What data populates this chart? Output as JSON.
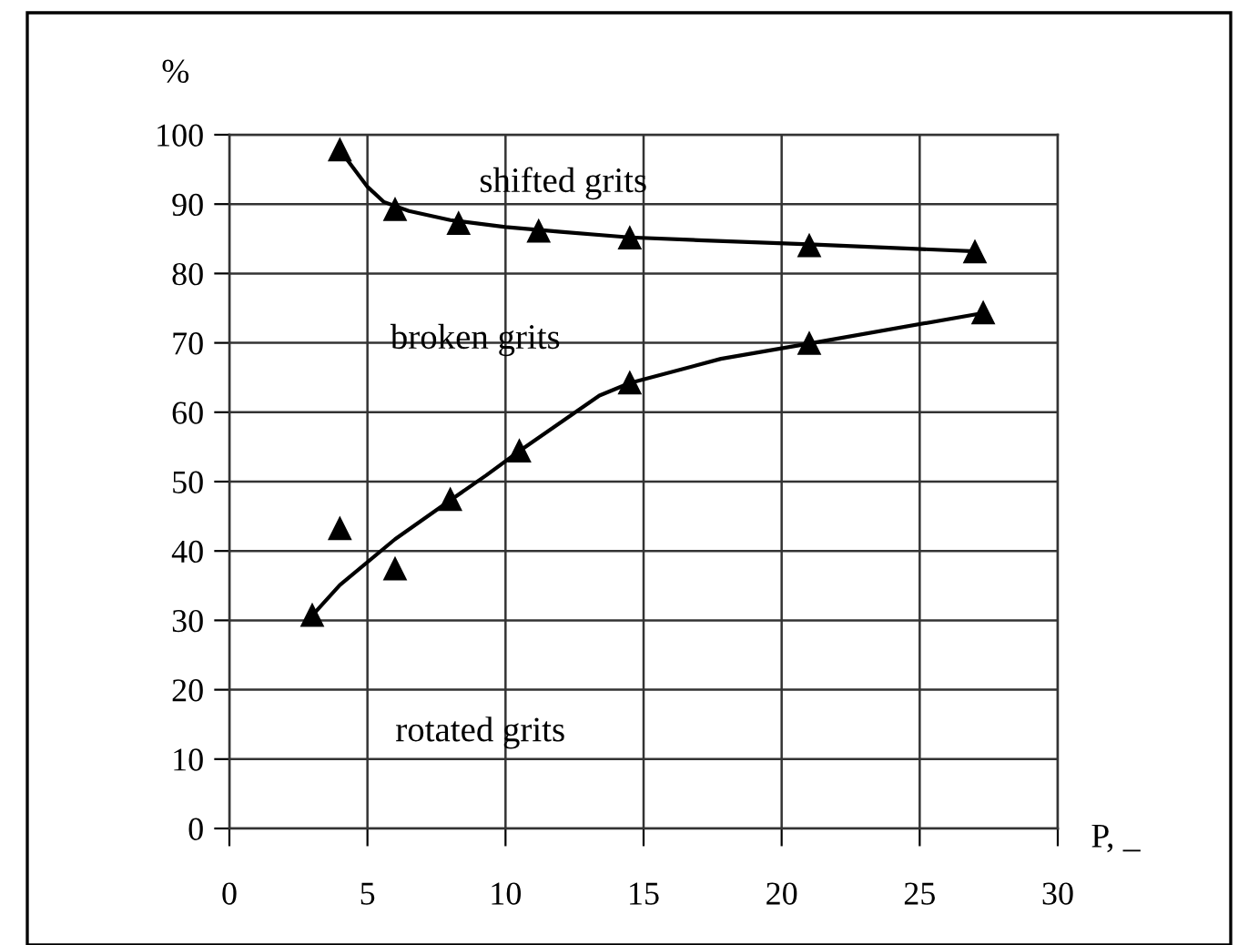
{
  "chart_data": {
    "type": "scatter",
    "xlabel": "P, _",
    "ylabel": "%",
    "xlim": [
      0,
      30
    ],
    "ylim": [
      0,
      100
    ],
    "xticks": [
      0,
      5,
      10,
      15,
      20,
      25,
      30
    ],
    "yticks": [
      0,
      10,
      20,
      30,
      40,
      50,
      60,
      70,
      80,
      90,
      100
    ],
    "grid": true,
    "marker": "triangle",
    "series": [
      {
        "color": "#000000",
        "x": [
          4.0,
          6.0,
          8.3,
          11.2,
          14.5,
          21.0,
          27.0
        ],
        "values": [
          97.8,
          89.2,
          87.2,
          86.1,
          85.1,
          84.0,
          83.1
        ]
      },
      {
        "type": "line",
        "marker": "none",
        "line_style": "solid",
        "color": "#000000",
        "x": [
          4.0,
          5.0,
          5.6,
          6.5,
          8.0,
          10.0,
          12.0,
          14.5,
          17.0,
          21.0,
          27.0
        ],
        "values": [
          97.8,
          92.5,
          90.3,
          89.0,
          87.7,
          86.7,
          86.0,
          85.2,
          84.8,
          84.2,
          83.2
        ]
      },
      {
        "color": "#000000",
        "x": [
          3.0,
          4.0,
          6.0,
          8.0,
          10.5,
          14.5,
          21.0,
          27.3
        ],
        "values": [
          30.7,
          43.2,
          37.4,
          47.4,
          54.4,
          64.2,
          69.9,
          74.3
        ]
      },
      {
        "type": "line",
        "marker": "none",
        "line_style": "solid",
        "color": "#000000",
        "x": [
          3.0,
          4.0,
          6.0,
          8.0,
          9.3,
          10.5,
          13.4,
          14.5,
          17.8,
          21.0,
          27.3
        ],
        "values": [
          30.7,
          35.1,
          41.7,
          47.3,
          50.9,
          54.4,
          62.4,
          64.2,
          67.7,
          69.9,
          74.3
        ]
      }
    ],
    "annotations": [
      "shifted grits",
      "broken grits",
      "rotated grits"
    ]
  }
}
